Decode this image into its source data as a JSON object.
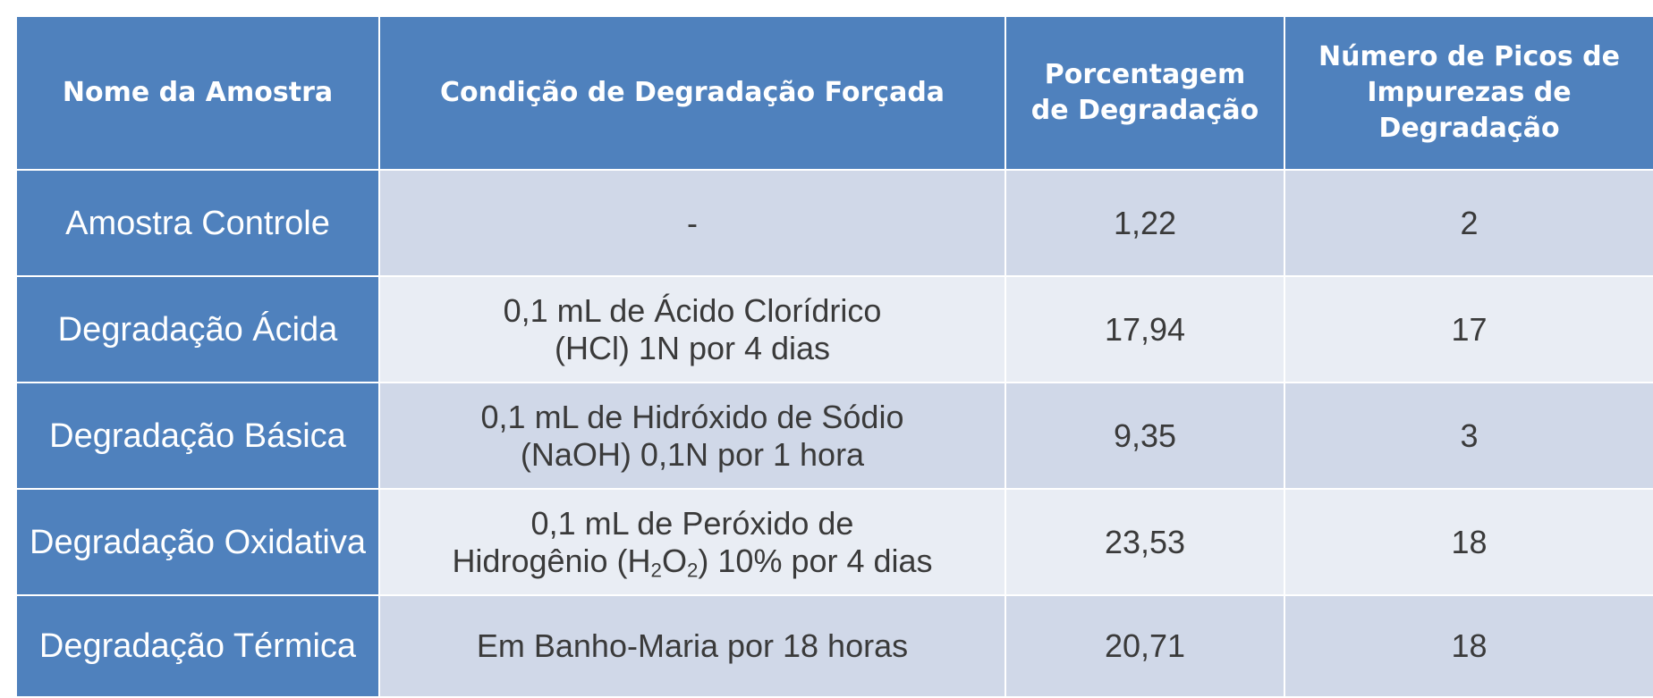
{
  "table": {
    "headers": [
      "Nome da Amostra",
      "Condição de Degradação Forçada",
      [
        "Porcentagem",
        "de Degradação"
      ],
      [
        "Número de Picos de",
        "Impurezas de",
        "Degradação"
      ]
    ],
    "rows": [
      {
        "sample": "Amostra Controle",
        "condition": [
          "-"
        ],
        "percentage": "1,22",
        "peaks": "2"
      },
      {
        "sample": "Degradação Ácida",
        "condition": [
          "0,1 mL de Ácido Clorídrico",
          "(HCl) 1N por 4 dias"
        ],
        "percentage": "17,94",
        "peaks": "17"
      },
      {
        "sample": "Degradação Básica",
        "condition": [
          "0,1 mL de Hidróxido de Sódio",
          "(NaOH) 0,1N por 1 hora"
        ],
        "percentage": "9,35",
        "peaks": "3"
      },
      {
        "sample": "Degradação Oxidativa",
        "condition": [
          "0,1 mL de Peróxido de",
          "Hidrogênio (H₂O₂) 10% por 4 dias"
        ],
        "percentage": "23,53",
        "peaks": "18"
      },
      {
        "sample": "Degradação Térmica",
        "condition": [
          "Em Banho-Maria por 18 horas"
        ],
        "percentage": "20,71",
        "peaks": "18"
      }
    ]
  }
}
